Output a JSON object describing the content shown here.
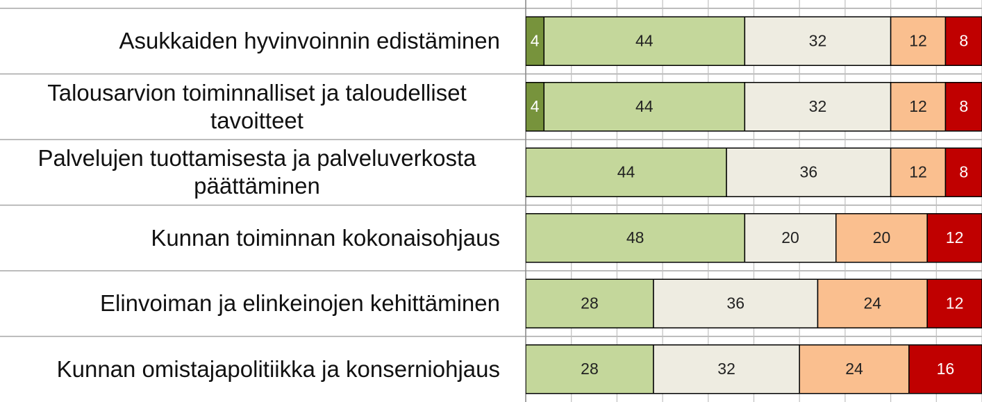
{
  "chart_data": {
    "type": "stacked-bar-horizontal",
    "categories": [
      "Asukkaiden hyvinvoinnin edistäminen",
      "Talousarvion toiminnalliset ja taloudelliset tavoitteet",
      "Palvelujen tuottamisesta ja palveluverkosta päättäminen",
      "Kunnan toiminnan kokonaisohjaus",
      "Elinvoiman ja elinkeinojen kehittäminen",
      "Kunnan omistajapolitiikka ja konserniohjaus"
    ],
    "series": [
      {
        "color": "#77933c",
        "values": [
          4,
          4,
          0,
          0,
          0,
          0
        ]
      },
      {
        "color": "#c4d79b",
        "values": [
          44,
          44,
          44,
          48,
          28,
          28
        ]
      },
      {
        "color": "#eeece1",
        "values": [
          32,
          32,
          36,
          20,
          36,
          32
        ]
      },
      {
        "color": "#fabf8f",
        "values": [
          12,
          12,
          12,
          20,
          24,
          24
        ]
      },
      {
        "color": "#c00000",
        "values": [
          8,
          8,
          8,
          12,
          12,
          16
        ]
      }
    ],
    "xlim": [
      0,
      100
    ],
    "xticks": [
      0,
      10,
      20,
      30,
      40,
      50,
      60,
      70,
      80,
      90,
      100
    ],
    "grid": true
  }
}
